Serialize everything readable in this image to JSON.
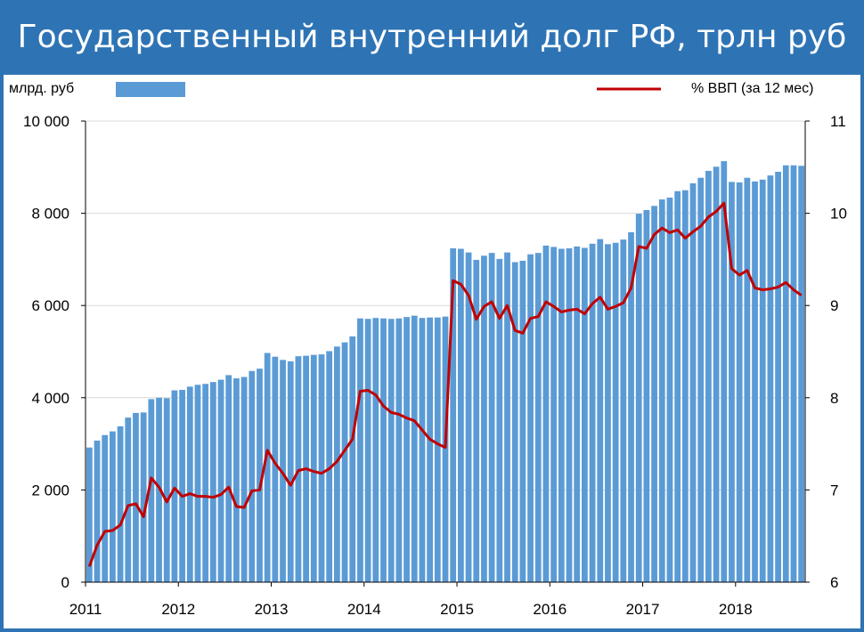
{
  "title": "Государственный внутренний долг РФ, трлн руб",
  "colors": {
    "background": "#2e74b5",
    "bar": "#5b9bd5",
    "line": "#c00000",
    "grid": "#d9d9d9"
  },
  "chart_data": {
    "type": "bar",
    "title": "Государственный внутренний долг РФ, трлн руб",
    "legend": {
      "placement": "top",
      "bar_label": "млрд. руб",
      "line_label": "% ВВП (за 12 мес)"
    },
    "grid": true,
    "x_range": [
      2011,
      2018.75
    ],
    "x_tick_labels": [
      "2011",
      "2012",
      "2013",
      "2014",
      "2015",
      "2016",
      "2017",
      "2018"
    ],
    "y_left": {
      "label": "млрд. руб",
      "range": [
        0,
        10000
      ],
      "ticks": [
        0,
        2000,
        4000,
        6000,
        8000,
        10000
      ],
      "tick_labels": [
        "0",
        "2 000",
        "4 000",
        "6 000",
        "8 000",
        "10 000"
      ]
    },
    "y_right": {
      "label": "% ВВП (за 12 мес)",
      "range": [
        6,
        11
      ],
      "ticks": [
        6,
        7,
        8,
        9,
        10,
        11
      ],
      "tick_labels": [
        "6",
        "7",
        "8",
        "9",
        "10",
        "11"
      ]
    },
    "series": [
      {
        "name": "млрд. руб",
        "type": "bar",
        "axis": "left",
        "values": [
          2920,
          3070,
          3190,
          3270,
          3380,
          3570,
          3670,
          3680,
          3970,
          4000,
          3990,
          4160,
          4170,
          4240,
          4280,
          4300,
          4340,
          4390,
          4490,
          4420,
          4450,
          4580,
          4630,
          4970,
          4890,
          4820,
          4790,
          4900,
          4910,
          4930,
          4940,
          5010,
          5110,
          5200,
          5330,
          5720,
          5710,
          5730,
          5720,
          5710,
          5720,
          5750,
          5780,
          5730,
          5740,
          5740,
          5760,
          7240,
          7230,
          7150,
          6990,
          7080,
          7140,
          7010,
          7150,
          6940,
          6970,
          7110,
          7140,
          7300,
          7270,
          7230,
          7240,
          7280,
          7250,
          7340,
          7440,
          7330,
          7360,
          7430,
          7590,
          7990,
          8070,
          8160,
          8300,
          8340,
          8480,
          8500,
          8650,
          8770,
          8920,
          9010,
          9130,
          8680,
          8670,
          8770,
          8690,
          8730,
          8820,
          8900,
          9040,
          9040,
          9030
        ]
      },
      {
        "name": "% ВВП (за 12 мес)",
        "type": "line",
        "axis": "right",
        "values": [
          6.17,
          6.4,
          6.55,
          6.56,
          6.62,
          6.83,
          6.85,
          6.71,
          7.13,
          7.03,
          6.87,
          7.02,
          6.93,
          6.96,
          6.93,
          6.93,
          6.92,
          6.95,
          7.03,
          6.82,
          6.81,
          6.99,
          7.0,
          7.43,
          7.29,
          7.18,
          7.05,
          7.21,
          7.23,
          7.2,
          7.18,
          7.23,
          7.31,
          7.43,
          7.55,
          8.07,
          8.08,
          8.03,
          7.91,
          7.84,
          7.82,
          7.78,
          7.75,
          7.65,
          7.55,
          7.5,
          7.46,
          9.27,
          9.23,
          9.11,
          8.85,
          8.99,
          9.04,
          8.86,
          9.0,
          8.73,
          8.7,
          8.86,
          8.88,
          9.04,
          8.99,
          8.93,
          8.95,
          8.96,
          8.91,
          9.02,
          9.09,
          8.96,
          8.99,
          9.03,
          9.19,
          9.64,
          9.62,
          9.77,
          9.84,
          9.79,
          9.82,
          9.73,
          9.8,
          9.86,
          9.96,
          10.02,
          10.11,
          9.4,
          9.33,
          9.38,
          9.19,
          9.17,
          9.18,
          9.2,
          9.25,
          9.17,
          9.11
        ]
      }
    ]
  }
}
